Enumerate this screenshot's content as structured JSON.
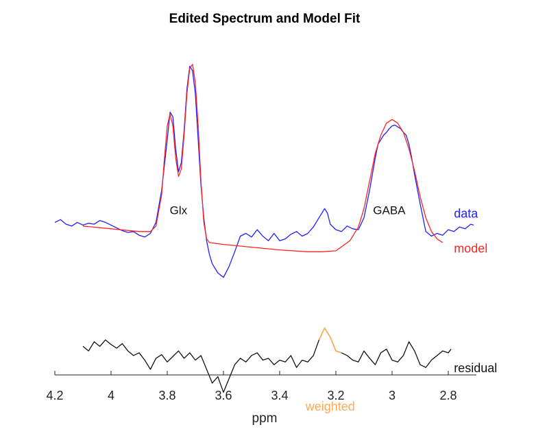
{
  "chart_data": {
    "type": "line",
    "title": "Edited Spectrum and Model Fit",
    "xlabel": "ppm",
    "x_reversed": true,
    "xlim": [
      4.2,
      2.7
    ],
    "xticks": [
      "4.2",
      "4",
      "3.8",
      "3.6",
      "3.4",
      "3.2",
      "3",
      "2.8"
    ],
    "y_axis_visible": false,
    "grid": false,
    "annotations": [
      {
        "text": "Glx",
        "x": 3.76,
        "y": 0.49
      },
      {
        "text": "GABA",
        "x": 3.01,
        "y": 0.49
      }
    ],
    "series": [
      {
        "name": "data",
        "color": "#1f1fff",
        "x": [
          4.2,
          4.18,
          4.16,
          4.14,
          4.12,
          4.1,
          4.08,
          4.06,
          4.04,
          4.02,
          4.0,
          3.98,
          3.96,
          3.94,
          3.92,
          3.9,
          3.88,
          3.86,
          3.84,
          3.82,
          3.8,
          3.79,
          3.78,
          3.77,
          3.76,
          3.75,
          3.74,
          3.73,
          3.72,
          3.71,
          3.7,
          3.69,
          3.68,
          3.67,
          3.66,
          3.65,
          3.64,
          3.62,
          3.6,
          3.58,
          3.56,
          3.54,
          3.52,
          3.5,
          3.48,
          3.46,
          3.44,
          3.42,
          3.4,
          3.38,
          3.36,
          3.34,
          3.32,
          3.3,
          3.28,
          3.26,
          3.24,
          3.23,
          3.22,
          3.2,
          3.18,
          3.16,
          3.14,
          3.12,
          3.1,
          3.08,
          3.06,
          3.05,
          3.04,
          3.03,
          3.02,
          3.01,
          3.0,
          2.99,
          2.98,
          2.97,
          2.96,
          2.95,
          2.94,
          2.93,
          2.92,
          2.9,
          2.88,
          2.86,
          2.84,
          2.82,
          2.8,
          2.78,
          2.76,
          2.74,
          2.72,
          2.71
        ],
        "y": [
          0.4,
          0.43,
          0.38,
          0.36,
          0.4,
          0.37,
          0.39,
          0.38,
          0.42,
          0.4,
          0.37,
          0.34,
          0.31,
          0.29,
          0.3,
          0.26,
          0.24,
          0.28,
          0.4,
          0.75,
          1.3,
          1.6,
          1.55,
          1.2,
          0.95,
          1.05,
          1.4,
          1.85,
          2.1,
          2.05,
          1.8,
          1.3,
          0.8,
          0.45,
          0.2,
          0.05,
          -0.05,
          -0.15,
          -0.2,
          -0.08,
          0.08,
          0.25,
          0.28,
          0.24,
          0.32,
          0.25,
          0.2,
          0.28,
          0.2,
          0.22,
          0.27,
          0.3,
          0.25,
          0.28,
          0.35,
          0.45,
          0.55,
          0.5,
          0.38,
          0.32,
          0.3,
          0.36,
          0.33,
          0.32,
          0.45,
          0.75,
          1.1,
          1.25,
          1.3,
          1.35,
          1.38,
          1.42,
          1.45,
          1.46,
          1.44,
          1.42,
          1.38,
          1.35,
          1.25,
          1.1,
          0.92,
          0.6,
          0.3,
          0.25,
          0.28,
          0.26,
          0.32,
          0.3,
          0.35,
          0.33,
          0.38,
          0.37
        ]
      },
      {
        "name": "model",
        "color": "#ff2222",
        "x": [
          4.1,
          4.0,
          3.9,
          3.86,
          3.84,
          3.82,
          3.81,
          3.8,
          3.79,
          3.78,
          3.77,
          3.76,
          3.75,
          3.74,
          3.73,
          3.72,
          3.71,
          3.7,
          3.69,
          3.68,
          3.67,
          3.66,
          3.65,
          3.6,
          3.5,
          3.4,
          3.3,
          3.25,
          3.2,
          3.15,
          3.12,
          3.1,
          3.08,
          3.06,
          3.04,
          3.02,
          3.0,
          2.98,
          2.96,
          2.94,
          2.92,
          2.9,
          2.88,
          2.86,
          2.84,
          2.82
        ],
        "y": [
          0.36,
          0.33,
          0.3,
          0.3,
          0.36,
          0.7,
          1.1,
          1.45,
          1.58,
          1.45,
          1.1,
          0.9,
          0.98,
          1.35,
          1.8,
          2.08,
          2.12,
          1.92,
          1.45,
          0.85,
          0.4,
          0.22,
          0.18,
          0.16,
          0.13,
          0.1,
          0.08,
          0.08,
          0.09,
          0.2,
          0.35,
          0.55,
          0.85,
          1.15,
          1.35,
          1.48,
          1.52,
          1.48,
          1.38,
          1.2,
          0.96,
          0.68,
          0.45,
          0.3,
          0.22,
          0.18
        ]
      },
      {
        "name": "residual",
        "color": "#111111",
        "x": [
          4.1,
          4.08,
          4.06,
          4.04,
          4.02,
          4.0,
          3.98,
          3.96,
          3.94,
          3.92,
          3.9,
          3.88,
          3.86,
          3.84,
          3.82,
          3.8,
          3.78,
          3.76,
          3.74,
          3.72,
          3.7,
          3.68,
          3.66,
          3.64,
          3.62,
          3.6,
          3.58,
          3.56,
          3.54,
          3.52,
          3.5,
          3.48,
          3.46,
          3.44,
          3.42,
          3.4,
          3.38,
          3.36,
          3.34,
          3.32,
          3.3,
          3.28,
          3.26,
          3.24,
          3.22,
          3.2,
          3.18,
          3.16,
          3.14,
          3.12,
          3.1,
          3.08,
          3.06,
          3.04,
          3.02,
          3.0,
          2.98,
          2.96,
          2.94,
          2.92,
          2.9,
          2.88,
          2.86,
          2.84,
          2.82,
          2.8,
          2.79
        ],
        "y": [
          -0.95,
          -1.0,
          -0.9,
          -0.95,
          -0.88,
          -0.93,
          -0.97,
          -0.92,
          -1.0,
          -1.05,
          -1.02,
          -1.1,
          -1.2,
          -1.08,
          -1.04,
          -1.12,
          -1.06,
          -1.0,
          -1.08,
          -1.02,
          -1.1,
          -1.05,
          -1.2,
          -1.35,
          -1.28,
          -1.45,
          -1.3,
          -1.15,
          -1.08,
          -1.12,
          -1.05,
          -1.02,
          -1.1,
          -1.08,
          -1.15,
          -1.1,
          -1.12,
          -1.05,
          -1.18,
          -1.1,
          -1.12,
          -1.05,
          -0.88,
          -0.75,
          -0.85,
          -1.0,
          -1.02,
          -1.05,
          -1.1,
          -1.12,
          -1.0,
          -1.08,
          -1.15,
          -1.02,
          -0.98,
          -1.1,
          -1.12,
          -1.05,
          -0.9,
          -1.0,
          -1.15,
          -1.18,
          -1.1,
          -1.05,
          -1.0,
          -1.02,
          -0.98
        ],
        "highlight": {
          "label": "weighted",
          "color": "#ffaa55",
          "x_from": 3.26,
          "x_to": 3.18
        }
      }
    ],
    "legend": {
      "placement": "right-inline",
      "entries": [
        {
          "text": "data",
          "color": "#1f1fff",
          "x": 2.78,
          "y": 0.45
        },
        {
          "text": "model",
          "color": "#ff2222",
          "x": 2.78,
          "y": 0.07
        },
        {
          "text": "residual",
          "color": "#111111",
          "x": 2.78,
          "y": -1.23
        },
        {
          "text": "weighted",
          "color": "#ffaa55",
          "x": 3.22,
          "y": -1.65
        }
      ]
    }
  }
}
